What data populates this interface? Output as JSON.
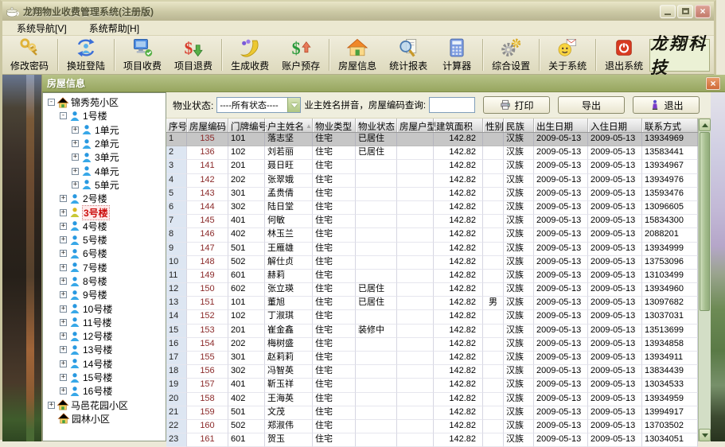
{
  "window": {
    "title": "龙翔物业收费管理系统(注册版)"
  },
  "menu": {
    "items": [
      {
        "id": "system-nav",
        "label": "系统导航[V]"
      },
      {
        "id": "system-help",
        "label": "系统帮助[H]"
      }
    ]
  },
  "toolbar": {
    "groups": [
      [
        {
          "id": "change-password",
          "label": "修改密码",
          "icon": "keys-icon"
        }
      ],
      [
        {
          "id": "shift-login",
          "label": "换班登陆",
          "icon": "shift-login-icon"
        }
      ],
      [
        {
          "id": "project-fee",
          "label": "项目收费",
          "icon": "project-fee-icon"
        },
        {
          "id": "project-refund",
          "label": "项目退费",
          "icon": "project-refund-icon"
        }
      ],
      [
        {
          "id": "generate-fee",
          "label": "生成收费",
          "icon": "generate-fee-icon"
        },
        {
          "id": "account-deposit",
          "label": "账户预存",
          "icon": "account-deposit-icon"
        }
      ],
      [
        {
          "id": "house-info",
          "label": "房屋信息",
          "icon": "house-info-icon"
        },
        {
          "id": "report-stats",
          "label": "统计报表",
          "icon": "report-icon"
        },
        {
          "id": "calculator",
          "label": "计算器",
          "icon": "calculator-icon"
        }
      ],
      [
        {
          "id": "settings",
          "label": "综合设置",
          "icon": "settings-icon"
        }
      ],
      [
        {
          "id": "about-system",
          "label": "关于系统",
          "icon": "about-icon"
        }
      ],
      [
        {
          "id": "exit-system",
          "label": "退出系统",
          "icon": "exit-icon"
        }
      ]
    ],
    "logo_text": "龙翔科技"
  },
  "panel": {
    "title": "房屋信息",
    "close_glyph": "×"
  },
  "tree": {
    "items": [
      {
        "label": "锦秀苑小区",
        "level": 0,
        "expander": "-",
        "icon": "community-house-icon"
      },
      {
        "label": "1号楼",
        "level": 1,
        "expander": "-",
        "icon": "person-blue-icon"
      },
      {
        "label": "1单元",
        "level": 2,
        "expander": "+",
        "icon": "person-blue-icon"
      },
      {
        "label": "2单元",
        "level": 2,
        "expander": "+",
        "icon": "person-blue-icon"
      },
      {
        "label": "3单元",
        "level": 2,
        "expander": "+",
        "icon": "person-blue-icon"
      },
      {
        "label": "4单元",
        "level": 2,
        "expander": "+",
        "icon": "person-blue-icon"
      },
      {
        "label": "5单元",
        "level": 2,
        "expander": "+",
        "icon": "person-blue-icon"
      },
      {
        "label": "2号楼",
        "level": 1,
        "expander": "+",
        "icon": "person-blue-icon"
      },
      {
        "label": "3号楼",
        "level": 1,
        "expander": "+",
        "icon": "person-yellow-icon",
        "selected": true
      },
      {
        "label": "4号楼",
        "level": 1,
        "expander": "+",
        "icon": "person-blue-icon"
      },
      {
        "label": "5号楼",
        "level": 1,
        "expander": "+",
        "icon": "person-blue-icon"
      },
      {
        "label": "6号楼",
        "level": 1,
        "expander": "+",
        "icon": "person-blue-icon"
      },
      {
        "label": "7号楼",
        "level": 1,
        "expander": "+",
        "icon": "person-blue-icon"
      },
      {
        "label": "8号楼",
        "level": 1,
        "expander": "+",
        "icon": "person-blue-icon"
      },
      {
        "label": "9号楼",
        "level": 1,
        "expander": "+",
        "icon": "person-blue-icon"
      },
      {
        "label": "10号楼",
        "level": 1,
        "expander": "+",
        "icon": "person-blue-icon"
      },
      {
        "label": "11号楼",
        "level": 1,
        "expander": "+",
        "icon": "person-blue-icon"
      },
      {
        "label": "12号楼",
        "level": 1,
        "expander": "+",
        "icon": "person-blue-icon"
      },
      {
        "label": "13号楼",
        "level": 1,
        "expander": "+",
        "icon": "person-blue-icon"
      },
      {
        "label": "14号楼",
        "level": 1,
        "expander": "+",
        "icon": "person-blue-icon"
      },
      {
        "label": "15号楼",
        "level": 1,
        "expander": "+",
        "icon": "person-blue-icon"
      },
      {
        "label": "16号楼",
        "level": 1,
        "expander": "+",
        "icon": "person-blue-icon"
      },
      {
        "label": "马邑花园小区",
        "level": 0,
        "expander": "+",
        "icon": "community-house-icon"
      },
      {
        "label": "园林小区",
        "level": 0,
        "expander": "",
        "icon": "community-house-icon"
      }
    ]
  },
  "filter": {
    "status_label": "物业状态:",
    "status_value": "----所有状态----",
    "search_label": "业主姓名拼音，房屋编码查询:",
    "search_value": "",
    "print_label": "打印",
    "export_label": "导出",
    "exit_label": "退出"
  },
  "table": {
    "columns": [
      {
        "label": "序号",
        "width": 26,
        "cls": "seq"
      },
      {
        "label": "房屋编码",
        "width": 52,
        "cls": "code"
      },
      {
        "label": "门牌编号",
        "width": 46,
        "cls": "door"
      },
      {
        "label": "户主姓名",
        "width": 60,
        "cls": "name",
        "sorted": true
      },
      {
        "label": "物业类型",
        "width": 54,
        "cls": "type"
      },
      {
        "label": "物业状态",
        "width": 52,
        "cls": "status"
      },
      {
        "label": "房屋户型",
        "width": 46,
        "cls": "layout"
      },
      {
        "label": "建筑面积",
        "width": 62,
        "cls": "area"
      },
      {
        "label": "性别",
        "width": 26,
        "cls": "gender"
      },
      {
        "label": "民族",
        "width": 38,
        "cls": "ethnic"
      },
      {
        "label": "出生日期",
        "width": 68,
        "cls": "birth"
      },
      {
        "label": "入住日期",
        "width": 68,
        "cls": "movein"
      },
      {
        "label": "联系方式",
        "width": 70,
        "cls": "phone"
      }
    ],
    "rows": [
      {
        "selected": true,
        "cells": [
          "1",
          "135",
          "101",
          "落志坚",
          "住宅",
          "已居住",
          "",
          "142.82",
          "",
          "汉族",
          "2009-05-13",
          "2009-05-13",
          "13934969"
        ]
      },
      {
        "cells": [
          "2",
          "136",
          "102",
          "刘若丽",
          "住宅",
          "已居住",
          "",
          "142.82",
          "",
          "汉族",
          "2009-05-13",
          "2009-05-13",
          "13583441"
        ]
      },
      {
        "cells": [
          "3",
          "141",
          "201",
          "聂日旺",
          "住宅",
          "",
          "",
          "142.82",
          "",
          "汉族",
          "2009-05-13",
          "2009-05-13",
          "13934967"
        ]
      },
      {
        "cells": [
          "4",
          "142",
          "202",
          "张翠娥",
          "住宅",
          "",
          "",
          "142.82",
          "",
          "汉族",
          "2009-05-13",
          "2009-05-13",
          "13934976"
        ]
      },
      {
        "cells": [
          "5",
          "143",
          "301",
          "孟贵倩",
          "住宅",
          "",
          "",
          "142.82",
          "",
          "汉族",
          "2009-05-13",
          "2009-05-13",
          "13593476"
        ]
      },
      {
        "cells": [
          "6",
          "144",
          "302",
          "陆日堂",
          "住宅",
          "",
          "",
          "142.82",
          "",
          "汉族",
          "2009-05-13",
          "2009-05-13",
          "13096605"
        ]
      },
      {
        "cells": [
          "7",
          "145",
          "401",
          "何敏",
          "住宅",
          "",
          "",
          "142.82",
          "",
          "汉族",
          "2009-05-13",
          "2009-05-13",
          "15834300"
        ]
      },
      {
        "cells": [
          "8",
          "146",
          "402",
          "林玉兰",
          "住宅",
          "",
          "",
          "142.82",
          "",
          "汉族",
          "2009-05-13",
          "2009-05-13",
          "2088201"
        ]
      },
      {
        "cells": [
          "9",
          "147",
          "501",
          "王雁雄",
          "住宅",
          "",
          "",
          "142.82",
          "",
          "汉族",
          "2009-05-13",
          "2009-05-13",
          "13934999"
        ]
      },
      {
        "cells": [
          "10",
          "148",
          "502",
          "解仕贞",
          "住宅",
          "",
          "",
          "142.82",
          "",
          "汉族",
          "2009-05-13",
          "2009-05-13",
          "13753096"
        ]
      },
      {
        "cells": [
          "11",
          "149",
          "601",
          "赫莉",
          "住宅",
          "",
          "",
          "142.82",
          "",
          "汉族",
          "2009-05-13",
          "2009-05-13",
          "13103499"
        ]
      },
      {
        "cells": [
          "12",
          "150",
          "602",
          "张立瑛",
          "住宅",
          "已居住",
          "",
          "142.82",
          "",
          "汉族",
          "2009-05-13",
          "2009-05-13",
          "13934960"
        ]
      },
      {
        "cells": [
          "13",
          "151",
          "101",
          "董旭",
          "住宅",
          "已居住",
          "",
          "142.82",
          "男",
          "汉族",
          "2009-05-13",
          "2009-05-13",
          "13097682"
        ]
      },
      {
        "cells": [
          "14",
          "152",
          "102",
          "丁淑琪",
          "住宅",
          "",
          "",
          "142.82",
          "",
          "汉族",
          "2009-05-13",
          "2009-05-13",
          "13037031"
        ]
      },
      {
        "cells": [
          "15",
          "153",
          "201",
          "崔金鑫",
          "住宅",
          "装修中",
          "",
          "142.82",
          "",
          "汉族",
          "2009-05-13",
          "2009-05-13",
          "13513699"
        ]
      },
      {
        "cells": [
          "16",
          "154",
          "202",
          "梅树盛",
          "住宅",
          "",
          "",
          "142.82",
          "",
          "汉族",
          "2009-05-13",
          "2009-05-13",
          "13934858"
        ]
      },
      {
        "cells": [
          "17",
          "155",
          "301",
          "赵莉莉",
          "住宅",
          "",
          "",
          "142.82",
          "",
          "汉族",
          "2009-05-13",
          "2009-05-13",
          "13934911"
        ]
      },
      {
        "cells": [
          "18",
          "156",
          "302",
          "冯智英",
          "住宅",
          "",
          "",
          "142.82",
          "",
          "汉族",
          "2009-05-13",
          "2009-05-13",
          "13834439"
        ]
      },
      {
        "cells": [
          "19",
          "157",
          "401",
          "靳玉祥",
          "住宅",
          "",
          "",
          "142.82",
          "",
          "汉族",
          "2009-05-13",
          "2009-05-13",
          "13034533"
        ]
      },
      {
        "cells": [
          "20",
          "158",
          "402",
          "王海英",
          "住宅",
          "",
          "",
          "142.82",
          "",
          "汉族",
          "2009-05-13",
          "2009-05-13",
          "13934959"
        ]
      },
      {
        "cells": [
          "21",
          "159",
          "501",
          "文茂",
          "住宅",
          "",
          "",
          "142.82",
          "",
          "汉族",
          "2009-05-13",
          "2009-05-13",
          "13994917"
        ]
      },
      {
        "cells": [
          "22",
          "160",
          "502",
          "郑淑伟",
          "住宅",
          "",
          "",
          "142.82",
          "",
          "汉族",
          "2009-05-13",
          "2009-05-13",
          "13703502"
        ]
      },
      {
        "cells": [
          "23",
          "161",
          "601",
          "贺玉",
          "住宅",
          "",
          "",
          "142.82",
          "",
          "汉族",
          "2009-05-13",
          "2009-05-13",
          "13034051"
        ]
      }
    ]
  },
  "colors": {
    "accent_olive": "#97a65f",
    "panel_close": "#cf6a38",
    "house_code_text": "#8b2a2a",
    "selected_row": "#c6c6c6",
    "seq_column": "#dde6f2",
    "scrollbar_thumb": "#a3bc8c",
    "tree_selected_text": "#cc0f0f"
  }
}
